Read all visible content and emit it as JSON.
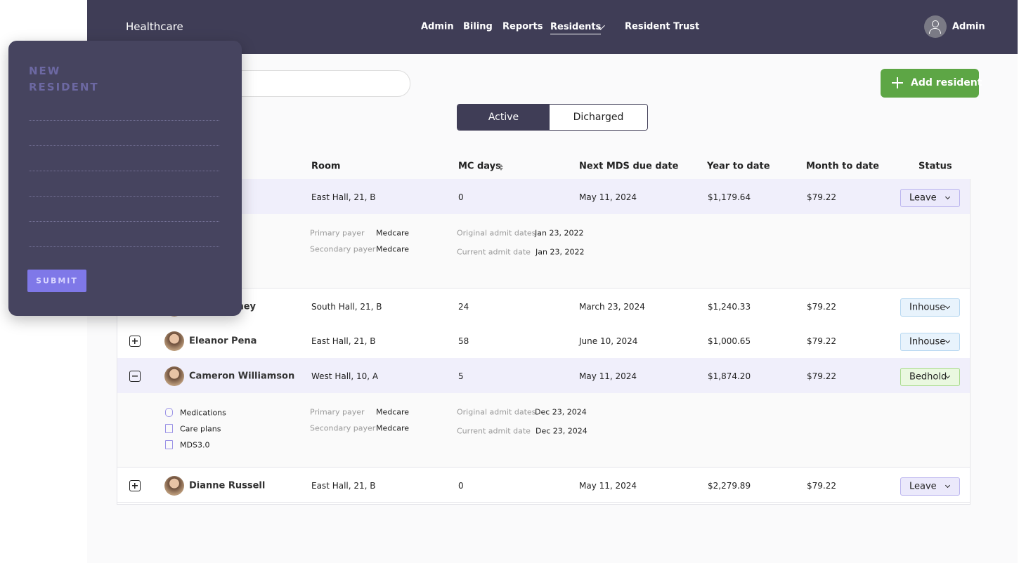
{
  "nav": {
    "brand": "Healthcare",
    "items": [
      "Admin",
      "Biling",
      "Reports",
      "Residents",
      "Resident Trust"
    ],
    "user": "Admin"
  },
  "actions": {
    "add": "Add resident",
    "tabs": [
      "Active",
      "Dicharged"
    ]
  },
  "panel": {
    "title": "NEW RESIDENT",
    "submit": "SUBMIT"
  },
  "table": {
    "headers": [
      "Room",
      "MC days",
      "Next MDS due date",
      "Year to date",
      "Month to date",
      "Status"
    ],
    "rows": [
      {
        "name": null,
        "room": "East Hall, 21, B",
        "mc_days": 0,
        "next_mds": "May 11, 2024",
        "ytd": "$1,179.64",
        "mtd": "$79.22",
        "status": "Leave",
        "details": {
          "links": [],
          "payers": [
            [
              "Primary payer",
              "Medcare"
            ],
            [
              "Secondary payer",
              "Medcare"
            ]
          ],
          "admits": [
            [
              "Original admit dates",
              "Jan 23, 2022"
            ],
            [
              "Current admit date",
              "Jan 23, 2022"
            ]
          ]
        }
      },
      {
        "name": "ney",
        "room": "South Hall, 21, B",
        "mc_days": 24,
        "next_mds": "March 23, 2024",
        "ytd": "$1,240.33",
        "mtd": "$79.22",
        "status": "Inhouse"
      },
      {
        "name": "Eleanor Pena",
        "room": "East Hall, 21, B",
        "mc_days": 58,
        "next_mds": "June 10, 2024",
        "ytd": "$1,000.65",
        "mtd": "$79.22",
        "status": "Inhouse"
      },
      {
        "name": "Cameron Williamson",
        "room": "West Hall, 10, A",
        "mc_days": 5,
        "next_mds": "May 11, 2024",
        "ytd": "$1,874.20",
        "mtd": "$79.22",
        "status": "Bedhold",
        "details": {
          "links": [
            "Medications",
            "Care plans",
            "MDS3.0"
          ],
          "payers": [
            [
              "Primary payer",
              "Medcare"
            ],
            [
              "Secondary payer",
              "Medcare"
            ]
          ],
          "admits": [
            [
              "Original admit dates",
              "Dec 23, 2024"
            ],
            [
              "Current admit date",
              "Dec 23, 2024"
            ]
          ]
        }
      },
      {
        "name": "Dianne Russell",
        "room": "East Hall, 21, B",
        "mc_days": 0,
        "next_mds": "May 11, 2024",
        "ytd": "$2,279.89",
        "mtd": "$79.22",
        "status": "Leave"
      }
    ]
  }
}
